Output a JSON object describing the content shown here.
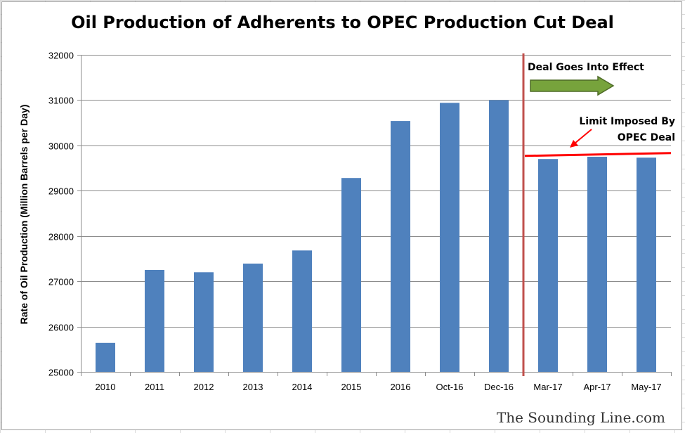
{
  "chart_data": {
    "type": "bar",
    "title": "Oil Production of Adherents to OPEC Production Cut Deal",
    "ylabel": "Rate of Oil Production (Million Barrels per Day)",
    "xlabel": "",
    "categories": [
      "2010",
      "2011",
      "2012",
      "2013",
      "2014",
      "2015",
      "2016",
      "Oct-16",
      "Dec-16",
      "Mar-17",
      "Apr-17",
      "May-17"
    ],
    "values": [
      25640,
      27250,
      27200,
      27390,
      27680,
      29280,
      30540,
      30940,
      31000,
      29700,
      29750,
      29730
    ],
    "ylim": [
      25000,
      32000
    ],
    "yticks": [
      "25000",
      "26000",
      "27000",
      "28000",
      "29000",
      "30000",
      "31000",
      "32000"
    ],
    "grid": true,
    "bar_color": "#4f81bd",
    "annotations": {
      "deal_line_label": "Deal Goes Into Effect",
      "deal_line_between": [
        "Dec-16",
        "Mar-17"
      ],
      "deal_line_color": "#c0504d",
      "limit_label_line1": "Limit Imposed By",
      "limit_label_line2": "OPEC Deal",
      "limit_value": 29800,
      "limit_color": "#ff0000",
      "arrow_color": "#77a33c"
    }
  },
  "watermark": "The Sounding Line.com"
}
